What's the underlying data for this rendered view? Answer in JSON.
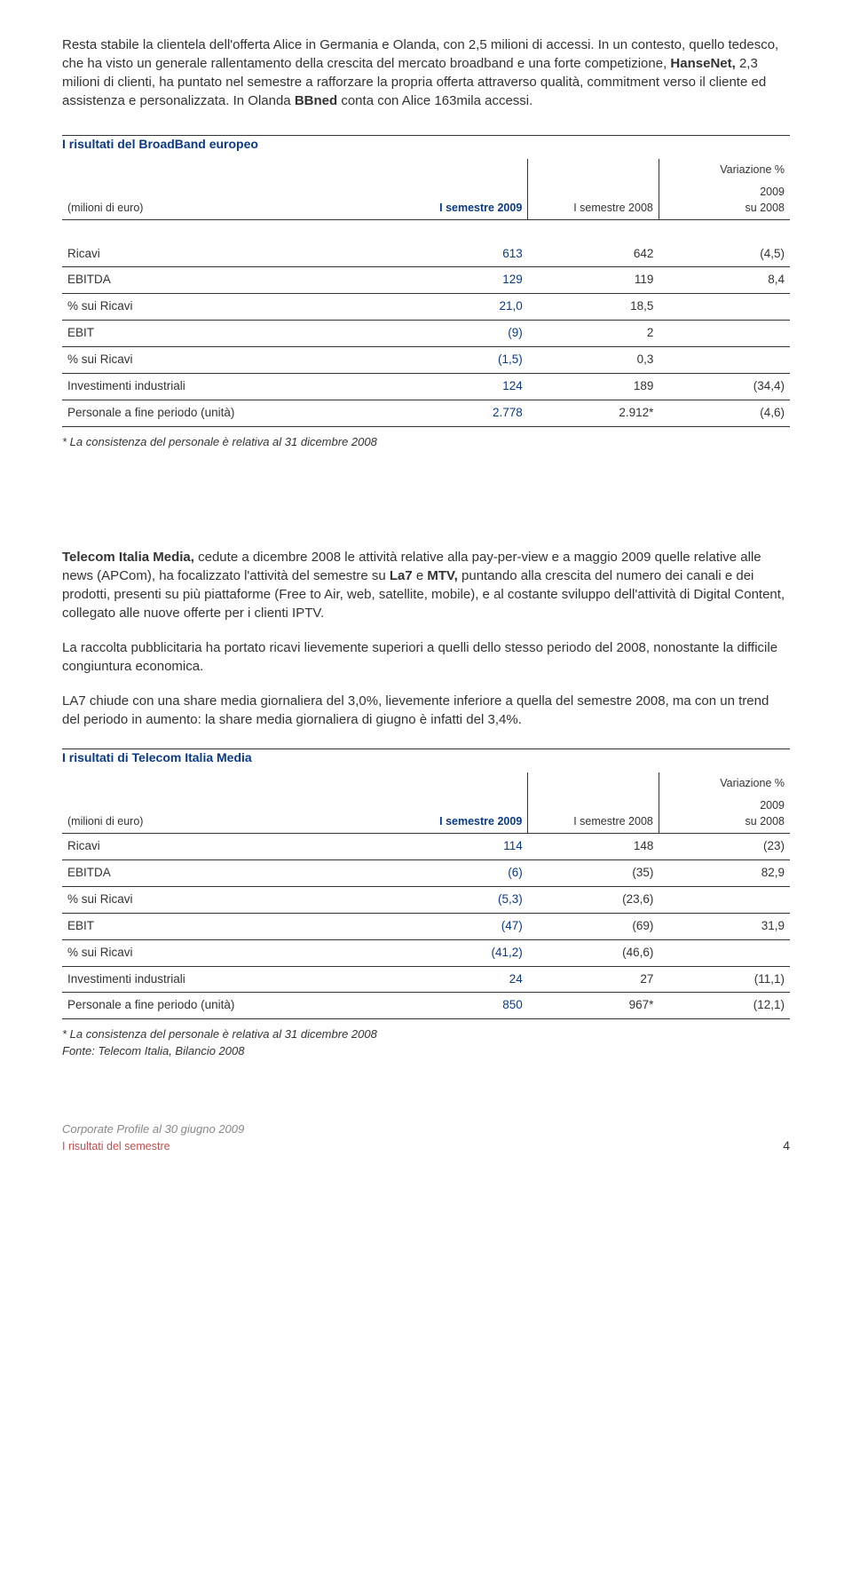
{
  "intro": {
    "p1_a": "Resta stabile la clientela dell'offerta Alice in Germania e Olanda, con 2,5 milioni di accessi. In un contesto, quello tedesco, che ha visto un generale rallentamento della crescita del mercato broadband e una forte competizione, ",
    "p1_b": "HanseNet,",
    "p1_c": " 2,3 milioni di clienti, ha puntato nel semestre a rafforzare la propria offerta attraverso qualità, commitment verso il cliente ed assistenza e personalizzata. In Olanda ",
    "p1_d": "BBned",
    "p1_e": " conta con Alice 163mila accessi."
  },
  "table1": {
    "title": "I risultati del BroadBand europeo",
    "unit_label": "(milioni di euro)",
    "col1": "I semestre 2009",
    "col2": "I semestre 2008",
    "var_label": "Variazione %",
    "var_sub": "2009\nsu 2008",
    "rows": [
      {
        "label": "Ricavi",
        "c1": "613",
        "c2": "642",
        "c3": "(4,5)"
      },
      {
        "label": "EBITDA",
        "c1": "129",
        "c2": "119",
        "c3": "8,4"
      },
      {
        "label": "% sui Ricavi",
        "c1": "21,0",
        "c2": "18,5",
        "c3": ""
      },
      {
        "label": "EBIT",
        "c1": "(9)",
        "c2": "2",
        "c3": ""
      },
      {
        "label": "% sui Ricavi",
        "c1": "(1,5)",
        "c2": "0,3",
        "c3": ""
      },
      {
        "label": "Investimenti industriali",
        "c1": "124",
        "c2": "189",
        "c3": "(34,4)"
      },
      {
        "label": "Personale a fine periodo (unità)",
        "c1": "2.778",
        "c2": "2.912*",
        "c3": "(4,6)"
      }
    ],
    "footnote": "* La consistenza del personale è relativa al 31 dicembre 2008"
  },
  "mid": {
    "p1_a": "Telecom Italia Media,",
    "p1_b": " cedute a dicembre 2008 le attività relative alla pay-per-view e a maggio 2009 quelle relative alle news (APCom), ha focalizzato l'attività del semestre su ",
    "p1_c": "La7",
    "p1_d": " e ",
    "p1_e": "MTV,",
    "p1_f": " puntando alla crescita del numero dei canali e dei prodotti, presenti su più piattaforme (Free to Air, web, satellite, mobile), e al costante sviluppo dell'attività di Digital Content, collegato alle nuove offerte per i clienti IPTV.",
    "p2": "La raccolta pubblicitaria ha portato ricavi lievemente superiori a quelli dello stesso periodo del 2008, nonostante la difficile congiuntura economica.",
    "p3": "LA7 chiude con una share media giornaliera del 3,0%, lievemente inferiore a quella del semestre 2008, ma con un trend del periodo in aumento: la share media giornaliera di giugno è infatti del 3,4%."
  },
  "table2": {
    "title": "I risultati di Telecom Italia Media",
    "unit_label": "(milioni di euro)",
    "col1": "I semestre 2009",
    "col2": "I semestre 2008",
    "var_label": "Variazione %",
    "var_sub": "2009\nsu 2008",
    "rows": [
      {
        "label": "Ricavi",
        "c1": "114",
        "c2": "148",
        "c3": "(23)"
      },
      {
        "label": "EBITDA",
        "c1": "(6)",
        "c2": "(35)",
        "c3": "82,9"
      },
      {
        "label": "% sui  Ricavi",
        "c1": "(5,3)",
        "c2": "(23,6)",
        "c3": ""
      },
      {
        "label": "EBIT",
        "c1": "(47)",
        "c2": "(69)",
        "c3": "31,9"
      },
      {
        "label": "% sui  Ricavi",
        "c1": "(41,2)",
        "c2": "(46,6)",
        "c3": ""
      },
      {
        "label": "Investimenti industriali",
        "c1": "24",
        "c2": "27",
        "c3": "(11,1)"
      },
      {
        "label": "Personale a fine periodo (unità)",
        "c1": "850",
        "c2": "967*",
        "c3": "(12,1)"
      }
    ],
    "footnote1": "* La consistenza del personale è relativa al 31 dicembre 2008",
    "footnote2": "Fonte: Telecom Italia, Bilancio 2008"
  },
  "footer": {
    "line1": "Corporate Profile al 30 giugno 2009",
    "line2": "I risultati del semestre",
    "page": "4"
  },
  "style": {
    "col_widths": [
      "46%",
      "18%",
      "18%",
      "18%"
    ]
  }
}
